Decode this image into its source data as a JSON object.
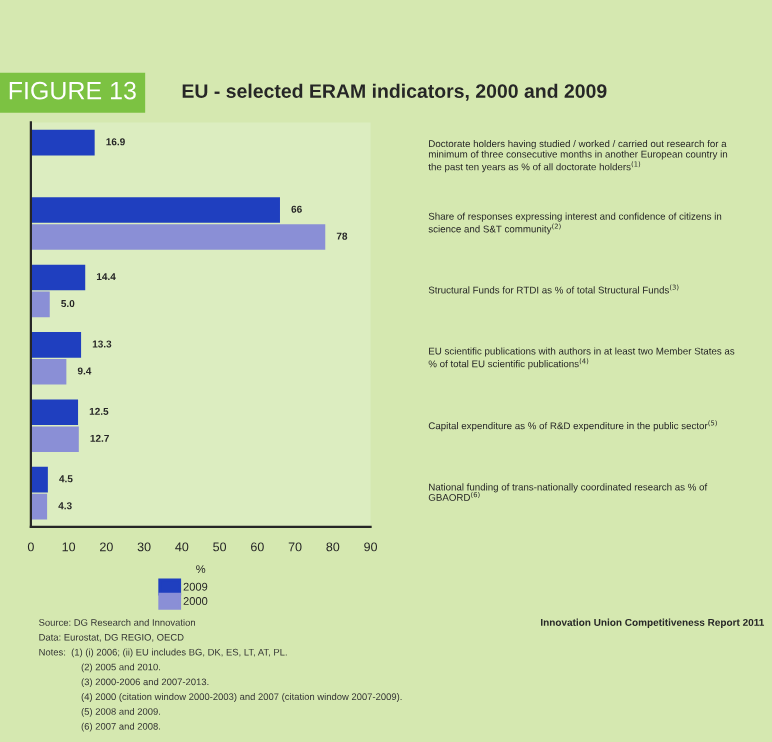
{
  "chart_data": {
    "type": "bar",
    "orientation": "horizontal",
    "title": "FIGURE 13",
    "subtitle": "EU - selected ERAM indicators, 2000 and 2009",
    "xlabel": "%",
    "categories": [
      "Doctorate holders having studied / worked / carried out research for a\nminimum of three consecutive months in another European country in\nthe past ten years as % of all doctorate holders$^{(1)}$",
      "Share of responses expressing interest and confidence of citizens in\nscience and S&T community$^{(2)}$",
      "Structural Funds for RTDI as % of total Structural Funds$^{(3)}$",
      "EU scientific publications with authors in at least two Member States as\n% of total EU scientific publications$^{(4)}$",
      "Capital expenditure as % of R&D expenditure in the public sector$^{(5)}$",
      "National funding of trans-nationally coordinated research as % of\nGBAORD$^{(6)}$"
    ],
    "series": [
      {
        "name": "2009",
        "color": "#1f3fbf",
        "values": [
          16.9,
          66,
          14.4,
          13.3,
          12.5,
          4.5
        ],
        "value_labels": [
          "16.9",
          "66",
          "14.4",
          "13.3",
          "12.5",
          "4.5"
        ]
      },
      {
        "name": "2000",
        "color": "#8a8fd6",
        "values": [
          null,
          78,
          5.0,
          9.4,
          12.7,
          4.3
        ],
        "value_labels": [
          null,
          "78",
          "5.0",
          "9.4",
          "12.7",
          "4.3"
        ]
      }
    ],
    "xlim": [
      0,
      90
    ],
    "xticks": [
      0,
      10,
      20,
      30,
      40,
      50,
      60,
      70,
      80,
      90
    ],
    "legend": "bottom",
    "annotations": [
      "Source: DG Research and Innovation",
      "Data: Eurostat, DG REGIO, OECD",
      "Notes:  (1) (i) 2006; (ii) EU includes BG, DK, ES, LT, AT, PL.",
      "(2) 2005 and 2010.",
      "(3) 2000-2006 and 2007-2013.",
      "(4) 2000 (citation window 2000-2003) and 2007 (citation window 2007-2009).",
      "(5) 2008 and 2009.",
      "(6) 2007 and 2008.",
      "Innovation Union Competitiveness Report 2011"
    ]
  }
}
